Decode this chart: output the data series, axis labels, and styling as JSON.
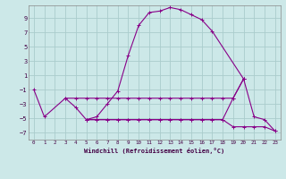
{
  "background_color": "#cce8e8",
  "grid_color": "#aacccc",
  "line_color": "#880088",
  "xlabel": "Windchill (Refroidissement éolien,°C)",
  "xlim": [
    -0.5,
    23.5
  ],
  "ylim": [
    -8.0,
    10.8
  ],
  "yticks": [
    -7,
    -5,
    -3,
    -1,
    1,
    3,
    5,
    7,
    9
  ],
  "xticks": [
    0,
    1,
    2,
    3,
    4,
    5,
    6,
    7,
    8,
    9,
    10,
    11,
    12,
    13,
    14,
    15,
    16,
    17,
    18,
    19,
    20,
    21,
    22,
    23
  ],
  "curve1_x": [
    0,
    1,
    3,
    4,
    5,
    6,
    7,
    8,
    9,
    10,
    11,
    12,
    13,
    14,
    15,
    16,
    17,
    20
  ],
  "curve1_y": [
    -1.0,
    -4.8,
    -2.2,
    -3.5,
    -5.2,
    -4.8,
    -3.0,
    -1.2,
    3.8,
    8.0,
    9.8,
    10.0,
    10.5,
    10.2,
    9.5,
    8.8,
    7.2,
    0.5
  ],
  "curve2_x": [
    3,
    4,
    5,
    6,
    7,
    8,
    9,
    10,
    11,
    12,
    13,
    14,
    15,
    16,
    17,
    18,
    19,
    20
  ],
  "curve2_y": [
    -2.2,
    -2.2,
    -2.2,
    -2.2,
    -2.2,
    -2.2,
    -2.2,
    -2.2,
    -2.2,
    -2.2,
    -2.2,
    -2.2,
    -2.2,
    -2.2,
    -2.2,
    -2.2,
    -2.2,
    0.5
  ],
  "curve3_x": [
    5,
    6,
    7,
    8,
    9,
    10,
    11,
    12,
    13,
    14,
    15,
    16,
    17,
    18,
    19,
    20,
    21,
    22,
    23
  ],
  "curve3_y": [
    -5.2,
    -5.2,
    -5.2,
    -5.2,
    -5.2,
    -5.2,
    -5.2,
    -5.2,
    -5.2,
    -5.2,
    -5.2,
    -5.2,
    -5.2,
    -5.2,
    -2.2,
    0.5,
    -4.8,
    -5.2,
    -6.8
  ],
  "curve4_x": [
    5,
    6,
    7,
    8,
    9,
    10,
    11,
    12,
    13,
    14,
    15,
    16,
    17,
    18,
    19,
    20,
    21,
    22,
    23
  ],
  "curve4_y": [
    -5.2,
    -5.2,
    -5.2,
    -5.2,
    -5.2,
    -5.2,
    -5.2,
    -5.2,
    -5.2,
    -5.2,
    -5.2,
    -5.2,
    -5.2,
    -5.2,
    -6.2,
    -6.2,
    -6.2,
    -6.2,
    -6.8
  ]
}
